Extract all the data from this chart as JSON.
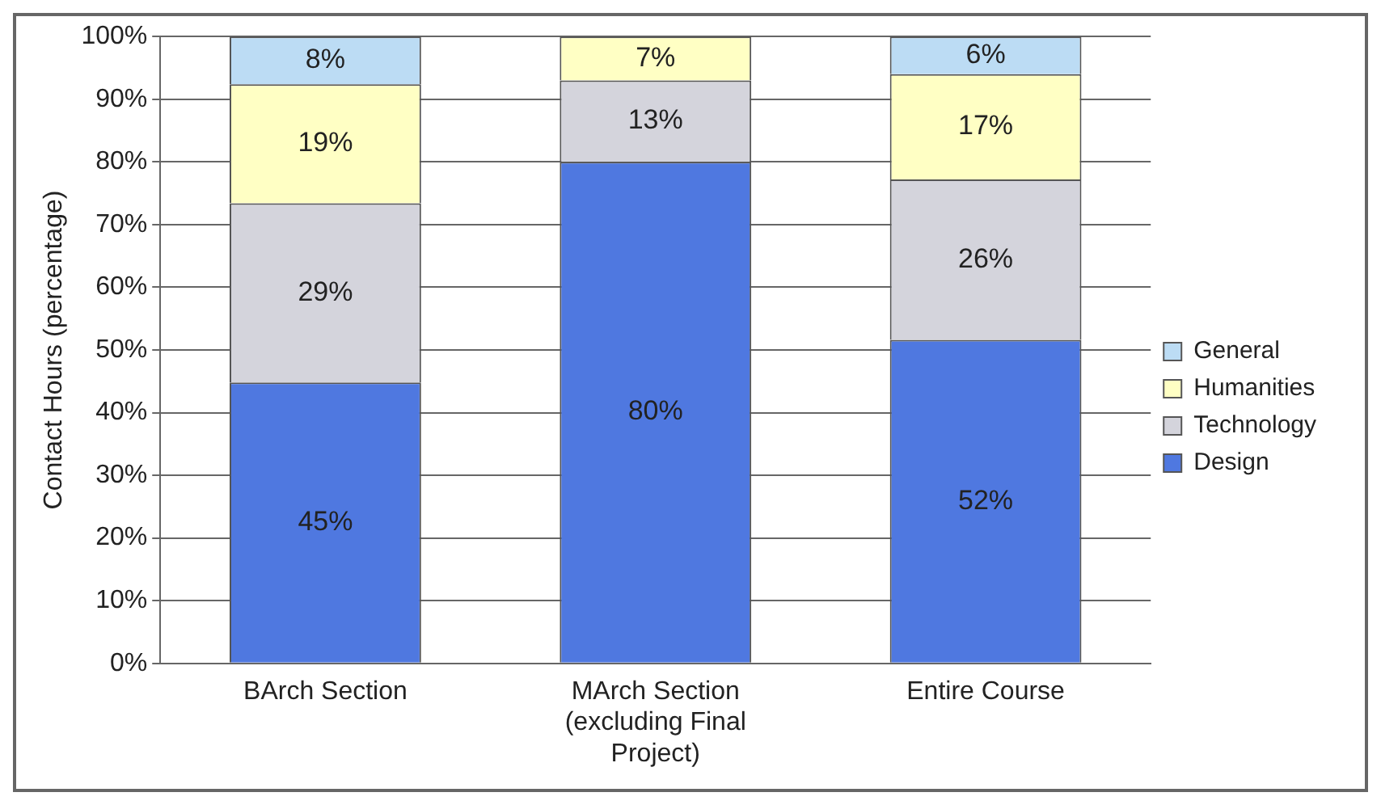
{
  "chart_data": {
    "type": "bar",
    "stacked": true,
    "ylabel": "Contact Hours (percentage)",
    "categories": [
      "BArch Section",
      "MArch Section (excluding Final Project)",
      "Entire Course"
    ],
    "series": [
      {
        "name": "Design",
        "color": "#4f78e0",
        "values": [
          44.8,
          80,
          51.6
        ]
      },
      {
        "name": "Technology",
        "color": "#d4d4dc",
        "values": [
          28.6,
          13,
          25.6
        ]
      },
      {
        "name": "Humanities",
        "color": "#ffffc4",
        "values": [
          19,
          7,
          16.8
        ]
      },
      {
        "name": "General",
        "color": "#bcdcf4",
        "values": [
          7.6,
          null,
          6
        ]
      }
    ],
    "value_labels": [
      [
        "45%",
        "80%",
        "52%"
      ],
      [
        "29%",
        "13%",
        "26%"
      ],
      [
        "19%",
        "7%",
        "17%"
      ],
      [
        "8%",
        null,
        "6%"
      ]
    ],
    "ylim": [
      0,
      100
    ],
    "yticks": [
      {
        "value": 0,
        "label": "0%"
      },
      {
        "value": 10,
        "label": "10%"
      },
      {
        "value": 20,
        "label": "20%"
      },
      {
        "value": 30,
        "label": "30%"
      },
      {
        "value": 40,
        "label": "40%"
      },
      {
        "value": 50,
        "label": "50%"
      },
      {
        "value": 60,
        "label": "60%"
      },
      {
        "value": 70,
        "label": "70%"
      },
      {
        "value": 80,
        "label": "80%"
      },
      {
        "value": 90,
        "label": "90%"
      },
      {
        "value": 100,
        "label": "100%"
      }
    ],
    "grid": "y",
    "legend": "right"
  }
}
